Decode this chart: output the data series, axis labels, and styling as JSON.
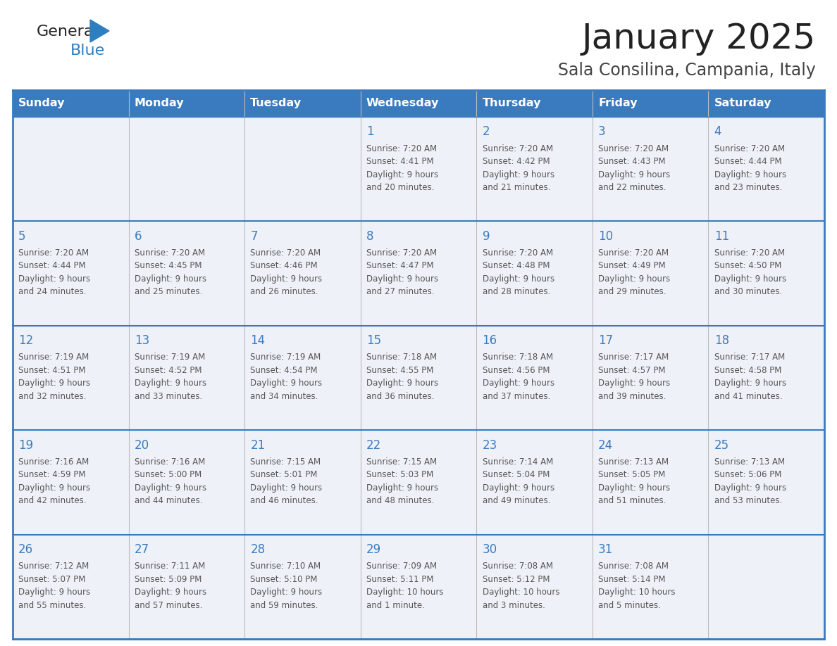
{
  "title": "January 2025",
  "subtitle": "Sala Consilina, Campania, Italy",
  "days_of_week": [
    "Sunday",
    "Monday",
    "Tuesday",
    "Wednesday",
    "Thursday",
    "Friday",
    "Saturday"
  ],
  "header_bg": "#3a7bbf",
  "header_text_color": "#ffffff",
  "cell_bg_light": "#eef2f8",
  "border_color": "#3a7bbf",
  "row_border_color": "#3a7bbf",
  "col_border_color": "#bbbbbb",
  "title_color": "#222222",
  "subtitle_color": "#444444",
  "day_number_color": "#3a7bbf",
  "cell_text_color": "#555555",
  "weeks": [
    [
      {
        "day": null,
        "info": null
      },
      {
        "day": null,
        "info": null
      },
      {
        "day": null,
        "info": null
      },
      {
        "day": 1,
        "info": "Sunrise: 7:20 AM\nSunset: 4:41 PM\nDaylight: 9 hours\nand 20 minutes."
      },
      {
        "day": 2,
        "info": "Sunrise: 7:20 AM\nSunset: 4:42 PM\nDaylight: 9 hours\nand 21 minutes."
      },
      {
        "day": 3,
        "info": "Sunrise: 7:20 AM\nSunset: 4:43 PM\nDaylight: 9 hours\nand 22 minutes."
      },
      {
        "day": 4,
        "info": "Sunrise: 7:20 AM\nSunset: 4:44 PM\nDaylight: 9 hours\nand 23 minutes."
      }
    ],
    [
      {
        "day": 5,
        "info": "Sunrise: 7:20 AM\nSunset: 4:44 PM\nDaylight: 9 hours\nand 24 minutes."
      },
      {
        "day": 6,
        "info": "Sunrise: 7:20 AM\nSunset: 4:45 PM\nDaylight: 9 hours\nand 25 minutes."
      },
      {
        "day": 7,
        "info": "Sunrise: 7:20 AM\nSunset: 4:46 PM\nDaylight: 9 hours\nand 26 minutes."
      },
      {
        "day": 8,
        "info": "Sunrise: 7:20 AM\nSunset: 4:47 PM\nDaylight: 9 hours\nand 27 minutes."
      },
      {
        "day": 9,
        "info": "Sunrise: 7:20 AM\nSunset: 4:48 PM\nDaylight: 9 hours\nand 28 minutes."
      },
      {
        "day": 10,
        "info": "Sunrise: 7:20 AM\nSunset: 4:49 PM\nDaylight: 9 hours\nand 29 minutes."
      },
      {
        "day": 11,
        "info": "Sunrise: 7:20 AM\nSunset: 4:50 PM\nDaylight: 9 hours\nand 30 minutes."
      }
    ],
    [
      {
        "day": 12,
        "info": "Sunrise: 7:19 AM\nSunset: 4:51 PM\nDaylight: 9 hours\nand 32 minutes."
      },
      {
        "day": 13,
        "info": "Sunrise: 7:19 AM\nSunset: 4:52 PM\nDaylight: 9 hours\nand 33 minutes."
      },
      {
        "day": 14,
        "info": "Sunrise: 7:19 AM\nSunset: 4:54 PM\nDaylight: 9 hours\nand 34 minutes."
      },
      {
        "day": 15,
        "info": "Sunrise: 7:18 AM\nSunset: 4:55 PM\nDaylight: 9 hours\nand 36 minutes."
      },
      {
        "day": 16,
        "info": "Sunrise: 7:18 AM\nSunset: 4:56 PM\nDaylight: 9 hours\nand 37 minutes."
      },
      {
        "day": 17,
        "info": "Sunrise: 7:17 AM\nSunset: 4:57 PM\nDaylight: 9 hours\nand 39 minutes."
      },
      {
        "day": 18,
        "info": "Sunrise: 7:17 AM\nSunset: 4:58 PM\nDaylight: 9 hours\nand 41 minutes."
      }
    ],
    [
      {
        "day": 19,
        "info": "Sunrise: 7:16 AM\nSunset: 4:59 PM\nDaylight: 9 hours\nand 42 minutes."
      },
      {
        "day": 20,
        "info": "Sunrise: 7:16 AM\nSunset: 5:00 PM\nDaylight: 9 hours\nand 44 minutes."
      },
      {
        "day": 21,
        "info": "Sunrise: 7:15 AM\nSunset: 5:01 PM\nDaylight: 9 hours\nand 46 minutes."
      },
      {
        "day": 22,
        "info": "Sunrise: 7:15 AM\nSunset: 5:03 PM\nDaylight: 9 hours\nand 48 minutes."
      },
      {
        "day": 23,
        "info": "Sunrise: 7:14 AM\nSunset: 5:04 PM\nDaylight: 9 hours\nand 49 minutes."
      },
      {
        "day": 24,
        "info": "Sunrise: 7:13 AM\nSunset: 5:05 PM\nDaylight: 9 hours\nand 51 minutes."
      },
      {
        "day": 25,
        "info": "Sunrise: 7:13 AM\nSunset: 5:06 PM\nDaylight: 9 hours\nand 53 minutes."
      }
    ],
    [
      {
        "day": 26,
        "info": "Sunrise: 7:12 AM\nSunset: 5:07 PM\nDaylight: 9 hours\nand 55 minutes."
      },
      {
        "day": 27,
        "info": "Sunrise: 7:11 AM\nSunset: 5:09 PM\nDaylight: 9 hours\nand 57 minutes."
      },
      {
        "day": 28,
        "info": "Sunrise: 7:10 AM\nSunset: 5:10 PM\nDaylight: 9 hours\nand 59 minutes."
      },
      {
        "day": 29,
        "info": "Sunrise: 7:09 AM\nSunset: 5:11 PM\nDaylight: 10 hours\nand 1 minute."
      },
      {
        "day": 30,
        "info": "Sunrise: 7:08 AM\nSunset: 5:12 PM\nDaylight: 10 hours\nand 3 minutes."
      },
      {
        "day": 31,
        "info": "Sunrise: 7:08 AM\nSunset: 5:14 PM\nDaylight: 10 hours\nand 5 minutes."
      },
      {
        "day": null,
        "info": null
      }
    ]
  ],
  "logo_general_color": "#222222",
  "logo_blue_color": "#2e7fc0",
  "logo_triangle_color": "#2e7fc0"
}
